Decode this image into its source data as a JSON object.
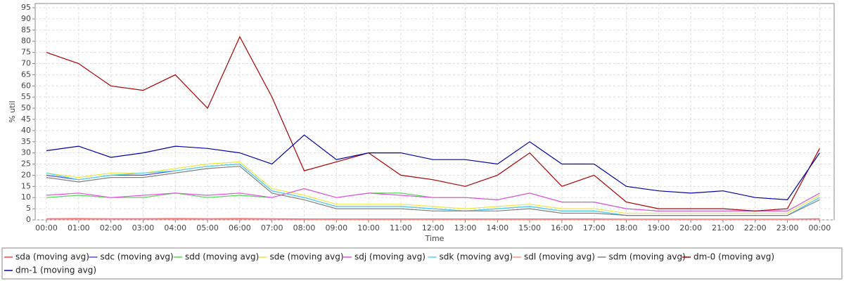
{
  "chart_data": {
    "type": "line",
    "x_label": "Time",
    "y_label": "% util",
    "x": [
      0,
      1,
      2,
      3,
      4,
      5,
      6,
      7,
      8,
      9,
      10,
      11,
      12,
      13,
      14,
      15,
      16,
      17,
      18,
      19,
      20,
      21,
      22,
      23,
      24
    ],
    "xlim": [
      -0.35,
      24.45
    ],
    "xticks": [
      {
        "value": 0,
        "label": "00:00"
      },
      {
        "value": 1,
        "label": "01:00"
      },
      {
        "value": 2,
        "label": "02:00"
      },
      {
        "value": 3,
        "label": "03:00"
      },
      {
        "value": 4,
        "label": "04:00"
      },
      {
        "value": 5,
        "label": "05:00"
      },
      {
        "value": 6,
        "label": "06:00"
      },
      {
        "value": 7,
        "label": "07:00"
      },
      {
        "value": 8,
        "label": "08:00"
      },
      {
        "value": 9,
        "label": "09:00"
      },
      {
        "value": 10,
        "label": "10:00"
      },
      {
        "value": 11,
        "label": "11:00"
      },
      {
        "value": 12,
        "label": "12:00"
      },
      {
        "value": 13,
        "label": "13:00"
      },
      {
        "value": 14,
        "label": "14:00"
      },
      {
        "value": 15,
        "label": "15:00"
      },
      {
        "value": 16,
        "label": "16:00"
      },
      {
        "value": 17,
        "label": "17:00"
      },
      {
        "value": 18,
        "label": "18:00"
      },
      {
        "value": 19,
        "label": "19:00"
      },
      {
        "value": 20,
        "label": "20:00"
      },
      {
        "value": 21,
        "label": "21:00"
      },
      {
        "value": 22,
        "label": "22:00"
      },
      {
        "value": 23,
        "label": "23:00"
      },
      {
        "value": 24,
        "label": "00:00"
      }
    ],
    "ylim": [
      0,
      96.9
    ],
    "yticks": [
      0,
      5,
      10,
      15,
      20,
      25,
      30,
      35,
      40,
      45,
      50,
      55,
      60,
      65,
      70,
      75,
      80,
      85,
      90,
      95
    ],
    "grid": true,
    "series": [
      {
        "name": "sda (moving avg)",
        "color": "#ff4040",
        "values": [
          0.5,
          0.6,
          0.5,
          0.5,
          0.6,
          0.5,
          0.6,
          0.5,
          0.4,
          0.4,
          0.4,
          0.4,
          0.4,
          0.4,
          0.4,
          0.4,
          0.4,
          0.4,
          0.3,
          0.3,
          0.3,
          0.3,
          0.3,
          0.3,
          0.5
        ]
      },
      {
        "name": "sdc (moving avg)",
        "color": "#4f4fe8",
        "values": [
          20,
          18,
          20,
          20,
          22,
          24,
          25,
          13,
          10,
          6,
          6,
          6,
          5,
          4,
          5,
          6,
          4,
          4,
          2,
          2,
          2,
          2,
          2,
          2,
          10
        ]
      },
      {
        "name": "sdd (moving avg)",
        "color": "#50d850",
        "values": [
          10,
          11,
          10,
          10,
          12,
          10,
          11,
          10,
          14,
          10,
          12,
          12,
          10,
          10,
          9,
          12,
          8,
          8,
          5,
          4,
          4,
          4,
          4,
          4,
          12
        ]
      },
      {
        "name": "sde (moving avg)",
        "color": "#e8e840",
        "values": [
          21,
          19,
          21,
          21,
          23,
          25,
          26,
          14,
          11,
          7,
          7,
          7,
          6,
          5,
          6,
          7,
          5,
          5,
          3,
          3,
          3,
          3,
          3,
          3,
          11
        ]
      },
      {
        "name": "sdj (moving avg)",
        "color": "#e850e8",
        "values": [
          11,
          12,
          10,
          11,
          12,
          11,
          12,
          10,
          14,
          10,
          12,
          11,
          10,
          10,
          9,
          12,
          8,
          8,
          5,
          4,
          4,
          4,
          4,
          4,
          12
        ]
      },
      {
        "name": "sdk (moving avg)",
        "color": "#50d8f0",
        "values": [
          21,
          18,
          20,
          21,
          22,
          24,
          25,
          13,
          10,
          6,
          6,
          6,
          5,
          4,
          5,
          6,
          4,
          4,
          2,
          2,
          2,
          2,
          2,
          2,
          10
        ]
      },
      {
        "name": "sdl (moving avg)",
        "color": "#ff9090",
        "values": [
          0.3,
          0.3,
          0.3,
          0.3,
          0.3,
          0.3,
          0.3,
          0.3,
          0.2,
          0.2,
          0.2,
          0.2,
          0.2,
          0.2,
          0.2,
          0.2,
          0.2,
          0.2,
          0.2,
          0.2,
          0.2,
          0.2,
          0.2,
          0.2,
          0.3
        ]
      },
      {
        "name": "sdm (moving avg)",
        "color": "#808080",
        "values": [
          19,
          17,
          19,
          19,
          21,
          23,
          24,
          12,
          9,
          5,
          5,
          5,
          4,
          4,
          4,
          5,
          3,
          3,
          2,
          2,
          2,
          2,
          2,
          2,
          9
        ]
      },
      {
        "name": "dm-0 (moving avg)",
        "color": "#aa0000",
        "values": [
          75,
          70,
          60,
          58,
          65,
          50,
          82,
          55,
          22,
          26,
          30,
          20,
          18,
          15,
          20,
          30,
          15,
          20,
          8,
          5,
          5,
          5,
          4,
          5,
          32
        ]
      },
      {
        "name": "dm-1 (moving avg)",
        "color": "#0000aa",
        "values": [
          31,
          33,
          28,
          30,
          33,
          32,
          30,
          25,
          38,
          27,
          30,
          30,
          27,
          27,
          25,
          35,
          25,
          25,
          15,
          13,
          12,
          13,
          10,
          9,
          30
        ]
      }
    ]
  }
}
